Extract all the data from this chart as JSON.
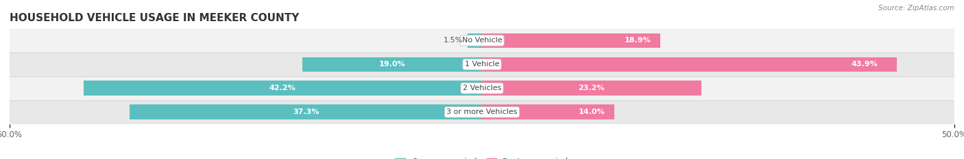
{
  "title": "HOUSEHOLD VEHICLE USAGE IN MEEKER COUNTY",
  "source": "Source: ZipAtlas.com",
  "categories": [
    "No Vehicle",
    "1 Vehicle",
    "2 Vehicles",
    "3 or more Vehicles"
  ],
  "owner_values": [
    1.5,
    19.0,
    42.2,
    37.3
  ],
  "renter_values": [
    18.9,
    43.9,
    23.2,
    14.0
  ],
  "owner_color": "#5BBFBF",
  "renter_color": "#F07AA0",
  "axis_limit": 50.0,
  "title_fontsize": 11,
  "label_fontsize": 8.0,
  "tick_fontsize": 8.5,
  "legend_fontsize": 8.5,
  "source_fontsize": 7.5,
  "background_color": "#FFFFFF",
  "bar_height": 0.62,
  "center_label_color": "#444444"
}
